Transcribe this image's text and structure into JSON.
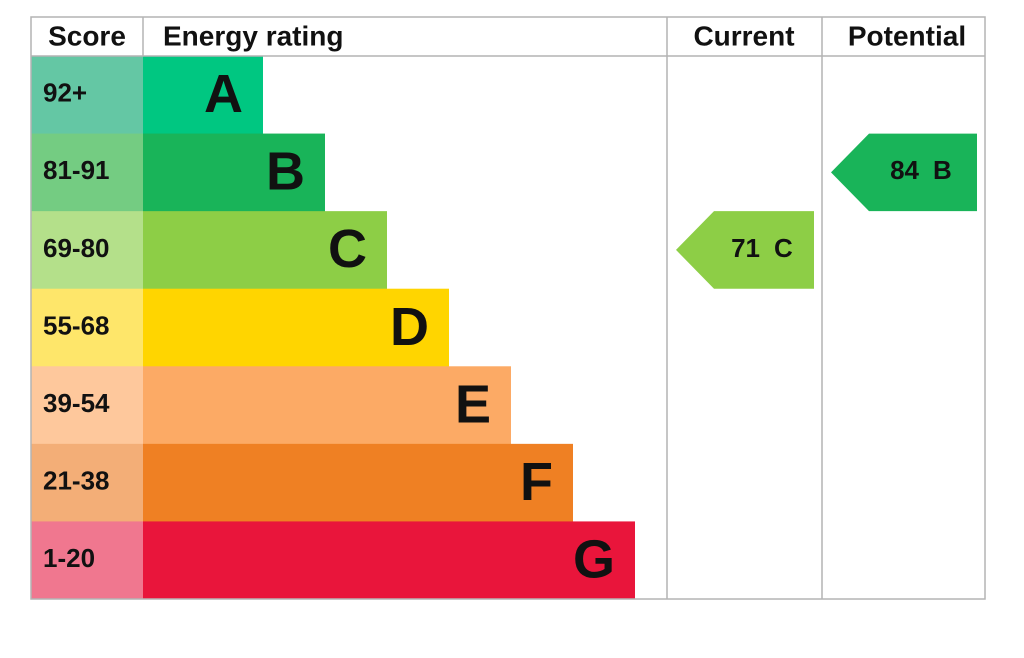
{
  "header": {
    "score": "Score",
    "rating": "Energy rating",
    "current": "Current",
    "potential": "Potential"
  },
  "bands": [
    {
      "score": "92+",
      "letter": "A",
      "color": "#00c781",
      "score_color": "#64c7a4"
    },
    {
      "score": "81-91",
      "letter": "B",
      "color": "#19b459",
      "score_color": "#74cc82"
    },
    {
      "score": "69-80",
      "letter": "C",
      "color": "#8dce46",
      "score_color": "#b4e08a"
    },
    {
      "score": "55-68",
      "letter": "D",
      "color": "#ffd500",
      "score_color": "#fee66a"
    },
    {
      "score": "39-54",
      "letter": "E",
      "color": "#fcaa65",
      "score_color": "#fec89c"
    },
    {
      "score": "21-38",
      "letter": "F",
      "color": "#ef8023",
      "score_color": "#f3ae77"
    },
    {
      "score": "1-20",
      "letter": "G",
      "color": "#e9153b",
      "score_color": "#f0778f"
    }
  ],
  "current": {
    "value": 71,
    "letter": "C"
  },
  "potential": {
    "value": 84,
    "letter": "B"
  }
}
